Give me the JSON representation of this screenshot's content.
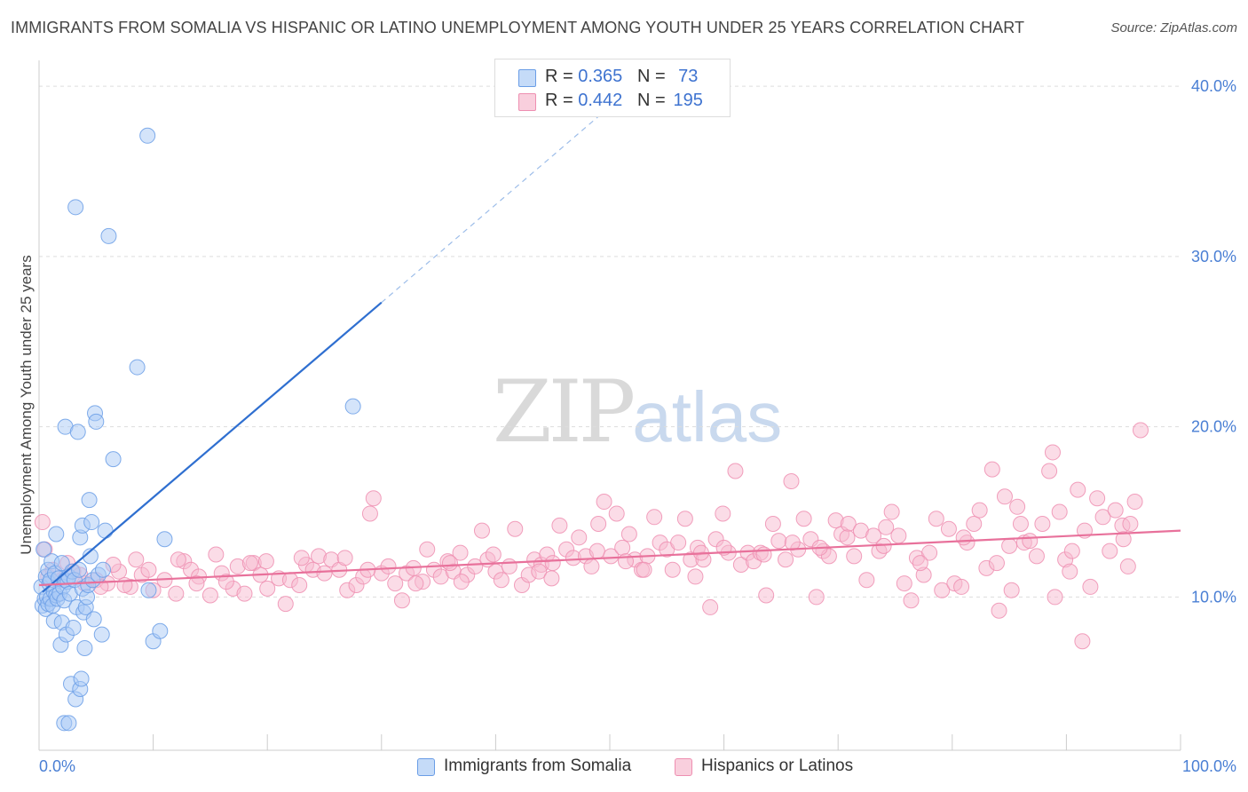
{
  "header": {
    "title": "IMMIGRANTS FROM SOMALIA VS HISPANIC OR LATINO UNEMPLOYMENT AMONG YOUTH UNDER 25 YEARS CORRELATION CHART",
    "source": "Source: ZipAtlas.com"
  },
  "watermark": {
    "zip": "ZIP",
    "atlas": "atlas"
  },
  "legend": {
    "rows": [
      {
        "r_label": "R =",
        "r_value": "0.365",
        "n_label": "N =",
        "n_value": "73",
        "color": "#a9c9f5"
      },
      {
        "r_label": "R =",
        "r_value": "0.442",
        "n_label": "N =",
        "n_value": "195",
        "color": "#f7b9cf"
      }
    ]
  },
  "bottom_legend": {
    "series1": "Immigrants from Somalia",
    "series2": "Hispanics or Latinos"
  },
  "colors": {
    "blue_fill": "#a9c9f5",
    "blue_stroke": "#6a9de6",
    "blue_line": "#2f6fd0",
    "pink_fill": "#f7b9cf",
    "pink_stroke": "#ee8fb1",
    "pink_line": "#e8719b",
    "axis_text": "#4a7fd4"
  },
  "chart_data": {
    "type": "scatter",
    "title": "IMMIGRANTS FROM SOMALIA VS HISPANIC OR LATINO UNEMPLOYMENT AMONG YOUTH UNDER 25 YEARS CORRELATION CHART",
    "xlabel": "",
    "ylabel": "Unemployment Among Youth under 25 years",
    "xlim": [
      0,
      100
    ],
    "ylim": [
      1,
      41
    ],
    "x_tick_labels": [
      "0.0%",
      "100.0%"
    ],
    "y_ticks": [
      10,
      20,
      30,
      40
    ],
    "y_tick_labels": [
      "10.0%",
      "20.0%",
      "30.0%",
      "40.0%"
    ],
    "grid": "horizontal dashed",
    "legend_position": "top-center",
    "series": [
      {
        "name": "Immigrants from Somalia",
        "R": 0.365,
        "N": 73,
        "trend": {
          "x0": 0.3,
          "y0": 10.3,
          "x1": 30,
          "y1": 27.3,
          "x_dash_end": 50,
          "y_dash_end": 38.8
        },
        "points": [
          [
            0.2,
            10.6
          ],
          [
            0.3,
            9.5
          ],
          [
            0.4,
            12.8
          ],
          [
            0.5,
            9.9
          ],
          [
            0.6,
            9.3
          ],
          [
            0.6,
            11.2
          ],
          [
            0.7,
            10.0
          ],
          [
            0.8,
            11.6
          ],
          [
            0.8,
            9.6
          ],
          [
            0.9,
            10.8
          ],
          [
            1.0,
            9.9
          ],
          [
            1.0,
            11.0
          ],
          [
            1.1,
            12.1
          ],
          [
            1.2,
            9.5
          ],
          [
            1.3,
            8.6
          ],
          [
            1.3,
            10.3
          ],
          [
            1.4,
            11.4
          ],
          [
            1.5,
            10.1
          ],
          [
            1.5,
            13.7
          ],
          [
            1.6,
            9.9
          ],
          [
            1.7,
            11.1
          ],
          [
            1.8,
            10.2
          ],
          [
            1.9,
            7.2
          ],
          [
            2.0,
            12.0
          ],
          [
            2.0,
            8.5
          ],
          [
            2.1,
            10.6
          ],
          [
            2.2,
            9.8
          ],
          [
            2.2,
            2.6
          ],
          [
            2.3,
            11.0
          ],
          [
            2.3,
            20.0
          ],
          [
            2.4,
            7.8
          ],
          [
            2.5,
            10.9
          ],
          [
            2.6,
            2.6
          ],
          [
            2.6,
            11.2
          ],
          [
            2.7,
            10.2
          ],
          [
            2.8,
            4.9
          ],
          [
            2.9,
            11.5
          ],
          [
            3.0,
            8.2
          ],
          [
            3.1,
            11.0
          ],
          [
            3.2,
            32.9
          ],
          [
            3.2,
            4.0
          ],
          [
            3.3,
            9.4
          ],
          [
            3.4,
            19.7
          ],
          [
            3.5,
            11.6
          ],
          [
            3.6,
            4.6
          ],
          [
            3.6,
            13.5
          ],
          [
            3.7,
            5.2
          ],
          [
            3.8,
            10.5
          ],
          [
            3.8,
            14.2
          ],
          [
            3.9,
            9.1
          ],
          [
            4.0,
            7.0
          ],
          [
            4.1,
            9.4
          ],
          [
            4.2,
            10.0
          ],
          [
            4.3,
            10.7
          ],
          [
            4.4,
            15.7
          ],
          [
            4.5,
            12.4
          ],
          [
            4.6,
            14.4
          ],
          [
            4.7,
            11.0
          ],
          [
            4.8,
            8.7
          ],
          [
            4.9,
            20.8
          ],
          [
            5.0,
            20.3
          ],
          [
            5.2,
            11.3
          ],
          [
            5.5,
            7.8
          ],
          [
            5.6,
            11.6
          ],
          [
            5.8,
            13.9
          ],
          [
            6.1,
            31.2
          ],
          [
            6.5,
            18.1
          ],
          [
            8.6,
            23.5
          ],
          [
            9.5,
            37.1
          ],
          [
            9.6,
            10.4
          ],
          [
            10.0,
            7.4
          ],
          [
            10.6,
            8.0
          ],
          [
            11.0,
            13.4
          ],
          [
            27.5,
            21.2
          ]
        ]
      },
      {
        "name": "Hispanics or Latinos",
        "R": 0.442,
        "N": 195,
        "trend": {
          "x0": 0,
          "y0": 10.7,
          "x1": 100,
          "y1": 13.9
        },
        "points": [
          [
            0.3,
            14.4
          ],
          [
            0.5,
            12.8
          ],
          [
            0.8,
            11.2
          ],
          [
            1.2,
            11.6
          ],
          [
            2.0,
            11.0
          ],
          [
            2.5,
            12.0
          ],
          [
            3.0,
            11.5
          ],
          [
            4.0,
            10.8
          ],
          [
            5.0,
            11.0
          ],
          [
            6.0,
            10.8
          ],
          [
            7.0,
            11.5
          ],
          [
            8.0,
            10.6
          ],
          [
            9.0,
            11.3
          ],
          [
            10.0,
            10.4
          ],
          [
            11.0,
            11.0
          ],
          [
            12.0,
            10.2
          ],
          [
            12.7,
            12.1
          ],
          [
            13.3,
            11.6
          ],
          [
            14.0,
            11.2
          ],
          [
            15.0,
            10.1
          ],
          [
            15.5,
            12.5
          ],
          [
            16.0,
            11.4
          ],
          [
            17.0,
            10.5
          ],
          [
            17.4,
            11.8
          ],
          [
            18.0,
            10.2
          ],
          [
            18.8,
            12.0
          ],
          [
            19.4,
            11.3
          ],
          [
            20.0,
            10.5
          ],
          [
            21.0,
            11.1
          ],
          [
            21.6,
            9.6
          ],
          [
            22.0,
            11.0
          ],
          [
            22.8,
            10.7
          ],
          [
            23.4,
            11.9
          ],
          [
            24.0,
            11.6
          ],
          [
            24.5,
            12.4
          ],
          [
            25.0,
            11.4
          ],
          [
            25.6,
            12.2
          ],
          [
            26.3,
            11.6
          ],
          [
            27.0,
            10.4
          ],
          [
            27.8,
            10.7
          ],
          [
            28.4,
            11.2
          ],
          [
            29.0,
            14.9
          ],
          [
            29.3,
            15.8
          ],
          [
            30.0,
            11.4
          ],
          [
            30.6,
            11.8
          ],
          [
            31.2,
            10.8
          ],
          [
            31.8,
            9.8
          ],
          [
            32.2,
            11.4
          ],
          [
            32.8,
            11.7
          ],
          [
            33.6,
            10.9
          ],
          [
            34.0,
            12.8
          ],
          [
            34.6,
            11.6
          ],
          [
            35.2,
            11.2
          ],
          [
            35.8,
            12.1
          ],
          [
            36.3,
            11.5
          ],
          [
            36.9,
            12.6
          ],
          [
            37.5,
            11.3
          ],
          [
            38.2,
            11.8
          ],
          [
            38.8,
            13.9
          ],
          [
            39.3,
            12.2
          ],
          [
            40.0,
            11.5
          ],
          [
            40.5,
            11.0
          ],
          [
            41.2,
            11.8
          ],
          [
            41.7,
            14.0
          ],
          [
            42.3,
            10.7
          ],
          [
            42.9,
            11.3
          ],
          [
            43.4,
            12.2
          ],
          [
            44.0,
            11.9
          ],
          [
            44.5,
            12.5
          ],
          [
            45.0,
            12.0
          ],
          [
            45.6,
            14.2
          ],
          [
            46.2,
            12.8
          ],
          [
            46.8,
            12.3
          ],
          [
            47.3,
            13.5
          ],
          [
            47.9,
            12.4
          ],
          [
            48.4,
            11.8
          ],
          [
            48.9,
            12.7
          ],
          [
            49.5,
            15.6
          ],
          [
            50.1,
            12.4
          ],
          [
            50.6,
            14.9
          ],
          [
            51.1,
            12.9
          ],
          [
            51.7,
            13.7
          ],
          [
            52.2,
            12.2
          ],
          [
            52.8,
            11.6
          ],
          [
            53.3,
            12.4
          ],
          [
            53.9,
            14.7
          ],
          [
            54.4,
            13.2
          ],
          [
            55.0,
            12.8
          ],
          [
            55.5,
            11.6
          ],
          [
            56.0,
            13.2
          ],
          [
            56.6,
            14.6
          ],
          [
            57.1,
            12.2
          ],
          [
            57.7,
            12.9
          ],
          [
            58.2,
            12.2
          ],
          [
            58.8,
            9.4
          ],
          [
            59.3,
            13.4
          ],
          [
            59.9,
            14.9
          ],
          [
            60.4,
            12.6
          ],
          [
            61.0,
            17.4
          ],
          [
            61.5,
            11.9
          ],
          [
            62.1,
            12.6
          ],
          [
            62.6,
            12.1
          ],
          [
            63.2,
            12.6
          ],
          [
            63.7,
            10.1
          ],
          [
            64.3,
            14.3
          ],
          [
            64.8,
            13.3
          ],
          [
            65.4,
            12.2
          ],
          [
            65.9,
            16.8
          ],
          [
            66.5,
            12.8
          ],
          [
            67.0,
            14.6
          ],
          [
            67.6,
            13.4
          ],
          [
            68.1,
            10.0
          ],
          [
            68.7,
            12.7
          ],
          [
            69.2,
            12.4
          ],
          [
            69.8,
            14.5
          ],
          [
            70.3,
            13.7
          ],
          [
            70.9,
            14.3
          ],
          [
            71.4,
            12.4
          ],
          [
            72.0,
            13.9
          ],
          [
            72.5,
            11.0
          ],
          [
            73.1,
            13.6
          ],
          [
            73.6,
            12.7
          ],
          [
            74.2,
            14.1
          ],
          [
            74.7,
            15.0
          ],
          [
            75.3,
            13.6
          ],
          [
            75.8,
            10.8
          ],
          [
            76.4,
            9.8
          ],
          [
            76.9,
            12.3
          ],
          [
            77.5,
            11.3
          ],
          [
            78.0,
            12.6
          ],
          [
            78.6,
            14.6
          ],
          [
            79.1,
            10.4
          ],
          [
            79.7,
            14.0
          ],
          [
            80.2,
            10.8
          ],
          [
            80.8,
            10.6
          ],
          [
            81.3,
            13.2
          ],
          [
            81.9,
            14.3
          ],
          [
            82.4,
            15.1
          ],
          [
            83.0,
            11.7
          ],
          [
            83.5,
            17.5
          ],
          [
            84.1,
            9.2
          ],
          [
            84.6,
            15.9
          ],
          [
            85.2,
            10.4
          ],
          [
            85.7,
            15.3
          ],
          [
            86.3,
            13.2
          ],
          [
            86.8,
            13.3
          ],
          [
            87.4,
            12.4
          ],
          [
            87.9,
            14.3
          ],
          [
            88.5,
            17.4
          ],
          [
            88.8,
            18.5
          ],
          [
            89.4,
            15.0
          ],
          [
            89.9,
            12.2
          ],
          [
            90.5,
            12.7
          ],
          [
            91.0,
            16.3
          ],
          [
            91.6,
            13.9
          ],
          [
            92.1,
            10.6
          ],
          [
            92.7,
            15.8
          ],
          [
            93.2,
            14.7
          ],
          [
            93.8,
            12.7
          ],
          [
            94.3,
            15.1
          ],
          [
            94.9,
            14.2
          ],
          [
            95.4,
            11.8
          ],
          [
            96.0,
            15.6
          ],
          [
            96.5,
            19.8
          ],
          [
            12.2,
            12.2
          ],
          [
            18.5,
            12.0
          ],
          [
            26.8,
            12.3
          ],
          [
            37.0,
            10.9
          ],
          [
            43.8,
            11.5
          ],
          [
            51.4,
            12.1
          ],
          [
            57.5,
            11.2
          ],
          [
            63.5,
            12.5
          ],
          [
            70.8,
            13.5
          ],
          [
            77.2,
            12.0
          ],
          [
            85.0,
            13.0
          ],
          [
            90.3,
            11.5
          ],
          [
            95.0,
            13.4
          ],
          [
            6.5,
            11.9
          ],
          [
            7.5,
            10.7
          ],
          [
            8.5,
            12.2
          ],
          [
            9.6,
            11.6
          ],
          [
            3.6,
            11.3
          ],
          [
            5.4,
            10.6
          ],
          [
            13.8,
            10.8
          ],
          [
            16.4,
            10.9
          ],
          [
            19.9,
            12.1
          ],
          [
            23.0,
            12.3
          ],
          [
            28.8,
            11.6
          ],
          [
            33.0,
            10.8
          ],
          [
            36.0,
            12.0
          ],
          [
            39.8,
            12.5
          ],
          [
            44.9,
            11.1
          ],
          [
            49.0,
            14.3
          ],
          [
            53.0,
            11.6
          ],
          [
            58.0,
            12.6
          ],
          [
            60.0,
            12.9
          ],
          [
            66.0,
            13.2
          ],
          [
            68.4,
            12.9
          ],
          [
            74.0,
            13.0
          ],
          [
            81.0,
            13.5
          ],
          [
            83.9,
            12.0
          ],
          [
            86.0,
            14.3
          ],
          [
            89.0,
            10.0
          ],
          [
            91.4,
            7.4
          ],
          [
            95.6,
            14.3
          ]
        ]
      }
    ]
  }
}
